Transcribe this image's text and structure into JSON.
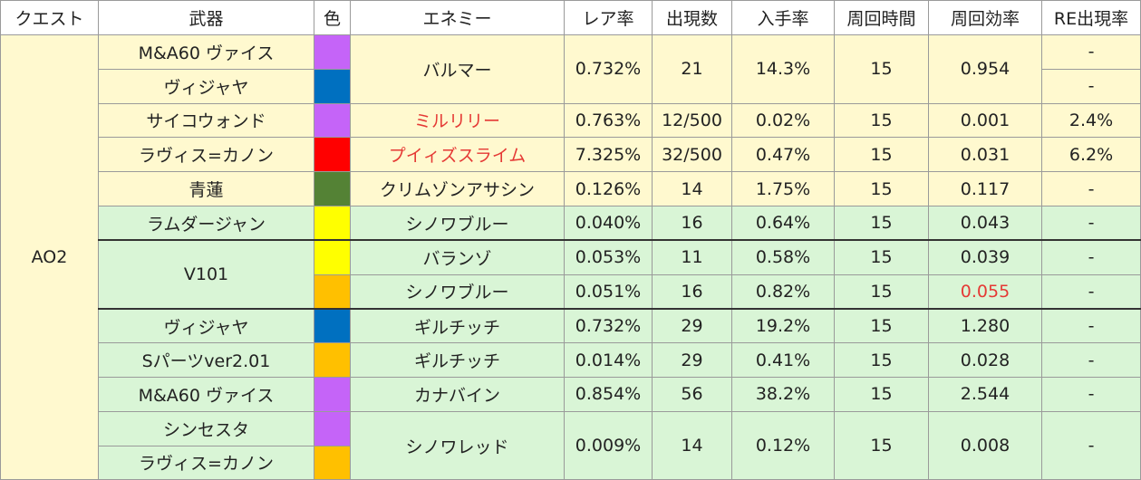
{
  "headers": [
    "クエスト",
    "武器",
    "色",
    "エネミー",
    "レア率",
    "出現数",
    "入手率",
    "周回時間",
    "周回効率",
    "RE出現率"
  ],
  "quest": "AO2",
  "colors": {
    "purple": "#c564f8",
    "blue": "#0070c0",
    "red": "#ff0000",
    "green": "#548235",
    "yellow": "#ffff00",
    "orange": "#ffc000",
    "highlight_text": "#e53935",
    "yellow_row_bg": "#fff9cf",
    "green_row_bg": "#d9f5d6"
  },
  "rows": [
    {
      "weapon": "M&A60 ヴァイス",
      "color": "#c564f8"
    },
    {
      "weapon": "ヴィジャヤ",
      "color": "#0070c0"
    },
    {
      "weapon": "サイコウォンド",
      "color": "#c564f8",
      "enemy": "ミルリリー",
      "rare": "0.763%",
      "count": "12/500",
      "rate": "0.02%",
      "time": "15",
      "eff": "0.001",
      "re": "2.4%"
    },
    {
      "weapon": "ラヴィス=カノン",
      "color": "#ff0000",
      "enemy": "プイィズスライム",
      "rare": "7.325%",
      "count": "32/500",
      "rate": "0.47%",
      "time": "15",
      "eff": "0.031",
      "re": "6.2%"
    },
    {
      "weapon": "青蓮",
      "color": "#548235",
      "enemy": "クリムゾンアサシン",
      "rare": "0.126%",
      "count": "14",
      "rate": "1.75%",
      "time": "15",
      "eff": "0.117",
      "re": "-"
    },
    {
      "weapon": "ラムダージャン",
      "color": "#ffff00",
      "enemy": "シノワブルー",
      "rare": "0.040%",
      "count": "16",
      "rate": "0.64%",
      "time": "15",
      "eff": "0.043",
      "re": "-"
    },
    {
      "color": "#ffff00",
      "enemy": "バランゾ",
      "rare": "0.053%",
      "count": "11",
      "rate": "0.58%",
      "time": "15",
      "eff": "0.039",
      "re": "-"
    },
    {
      "color": "#ffc000",
      "enemy": "シノワブルー",
      "rare": "0.051%",
      "count": "16",
      "rate": "0.82%",
      "time": "15",
      "eff": "0.055",
      "re": "-"
    },
    {
      "weapon": "ヴィジャヤ",
      "color": "#0070c0",
      "enemy": "ギルチッチ",
      "rare": "0.732%",
      "count": "29",
      "rate": "19.2%",
      "time": "15",
      "eff": "1.280",
      "re": "-"
    },
    {
      "weapon": "Sパーツver2.01",
      "color": "#ffc000",
      "enemy": "ギルチッチ",
      "rare": "0.014%",
      "count": "29",
      "rate": "0.41%",
      "time": "15",
      "eff": "0.028",
      "re": "-"
    },
    {
      "weapon": "M&A60 ヴァイス",
      "color": "#c564f8",
      "enemy": "カナバイン",
      "rare": "0.854%",
      "count": "56",
      "rate": "38.2%",
      "time": "15",
      "eff": "2.544",
      "re": "-"
    },
    {
      "weapon": "シンセスタ",
      "color": "#c564f8"
    },
    {
      "weapon": "ラヴィス=カノン",
      "color": "#ffc000"
    }
  ],
  "merged": {
    "r0": {
      "enemy": "バルマー",
      "rare": "0.732%",
      "count": "21",
      "rate": "14.3%",
      "time": "15",
      "eff": "0.954",
      "re0": "-",
      "re1": "-"
    },
    "v101": {
      "weapon": "V101"
    },
    "r11": {
      "enemy": "シノワレッド",
      "rare": "0.009%",
      "count": "14",
      "rate": "0.12%",
      "time": "15",
      "eff": "0.008",
      "re": "-"
    }
  }
}
